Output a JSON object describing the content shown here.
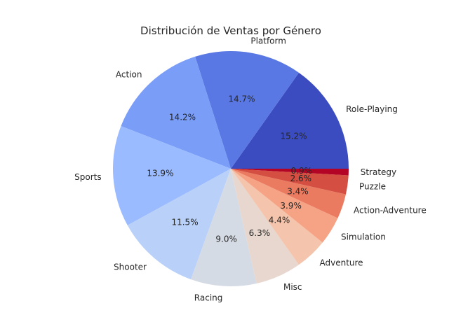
{
  "chart_data": {
    "type": "pie",
    "title": "Distribución de Ventas por Género",
    "slices": [
      {
        "label": "Role-Playing",
        "value": 15.2,
        "pct_label": "15.2%",
        "color": "#3b4cc0"
      },
      {
        "label": "Platform",
        "value": 14.7,
        "pct_label": "14.7%",
        "color": "#5a78e4"
      },
      {
        "label": "Action",
        "value": 14.2,
        "pct_label": "14.2%",
        "color": "#7a9df8"
      },
      {
        "label": "Sports",
        "value": 13.9,
        "pct_label": "13.9%",
        "color": "#9abbff"
      },
      {
        "label": "Shooter",
        "value": 11.5,
        "pct_label": "11.5%",
        "color": "#b9d0f9"
      },
      {
        "label": "Racing",
        "value": 9.0,
        "pct_label": "9.0%",
        "color": "#d5dbe5"
      },
      {
        "label": "Misc",
        "value": 6.3,
        "pct_label": "6.3%",
        "color": "#e7d7ce"
      },
      {
        "label": "Adventure",
        "value": 4.4,
        "pct_label": "4.4%",
        "color": "#f4c4ac"
      },
      {
        "label": "Simulation",
        "value": 3.9,
        "pct_label": "3.9%",
        "color": "#f6a385"
      },
      {
        "label": "Action-Adventure",
        "value": 3.4,
        "pct_label": "3.4%",
        "color": "#ea7b60"
      },
      {
        "label": "Puzzle",
        "value": 2.6,
        "pct_label": "2.6%",
        "color": "#d44e41"
      },
      {
        "label": "Strategy",
        "value": 0.9,
        "pct_label": "0.9%",
        "color": "#b40426"
      }
    ],
    "start_angle": "counterclockwise from 3 o'clock"
  }
}
